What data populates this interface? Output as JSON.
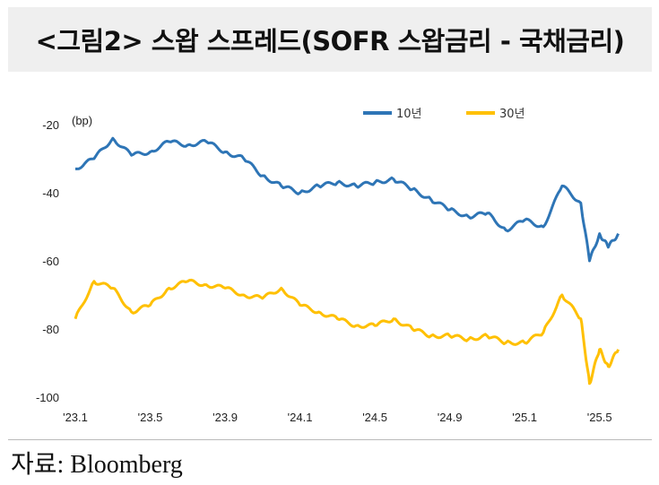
{
  "title": "<그림2> 스왑 스프레드(SOFR 스왑금리 - 국채금리)",
  "source": "자료: Bloomberg",
  "chart_data": {
    "type": "line",
    "unit_label": "(bp)",
    "ylim": [
      -100,
      -20
    ],
    "yticks": [
      -20,
      -40,
      -60,
      -80,
      -100
    ],
    "xticks": [
      "'23.1",
      "'23.5",
      "'23.9",
      "'24.1",
      "'24.5",
      "'24.9",
      "'25.1",
      "'25.5"
    ],
    "x_months": [
      "2023-01",
      "2023-03",
      "2023-05",
      "2023-07",
      "2023-09",
      "2023-11",
      "2024-01",
      "2024-03",
      "2024-05",
      "2024-07",
      "2024-09",
      "2024-11",
      "2025-01",
      "2025-02",
      "2025-03",
      "2025-04",
      "2025-05",
      "2025-06"
    ],
    "grid": false,
    "legend_position": "top",
    "series": [
      {
        "name": "10년",
        "color": "#2E75B6",
        "x": [
          "2023-01",
          "2023-02",
          "2023-03",
          "2023-04",
          "2023-05",
          "2023-06",
          "2023-07",
          "2023-08",
          "2023-09",
          "2023-10",
          "2023-11",
          "2023-12",
          "2024-01",
          "2024-02",
          "2024-03",
          "2024-04",
          "2024-05",
          "2024-06",
          "2024-07",
          "2024-08",
          "2024-09",
          "2024-10",
          "2024-11",
          "2024-12",
          "2025-01",
          "2025-02",
          "2025-03",
          "2025-04",
          "2025-04-15",
          "2025-05",
          "2025-05-15",
          "2025-06"
        ],
        "values": [
          -33,
          -30,
          -24,
          -29,
          -28,
          -25,
          -26,
          -25,
          -28,
          -30,
          -35,
          -38,
          -40,
          -38,
          -37,
          -38,
          -37,
          -36,
          -39,
          -42,
          -45,
          -47,
          -46,
          -51,
          -48,
          -50,
          -38,
          -43,
          -60,
          -52,
          -56,
          -52
        ]
      },
      {
        "name": "30년",
        "color": "#FFC000",
        "x": [
          "2023-01",
          "2023-02",
          "2023-03",
          "2023-04",
          "2023-05",
          "2023-06",
          "2023-07",
          "2023-08",
          "2023-09",
          "2023-10",
          "2023-11",
          "2023-12",
          "2024-01",
          "2024-02",
          "2024-03",
          "2024-04",
          "2024-05",
          "2024-06",
          "2024-07",
          "2024-08",
          "2024-09",
          "2024-10",
          "2024-11",
          "2024-12",
          "2025-01",
          "2025-02",
          "2025-03",
          "2025-04",
          "2025-04-15",
          "2025-05",
          "2025-05-15",
          "2025-06"
        ],
        "values": [
          -77,
          -66,
          -68,
          -75,
          -73,
          -68,
          -66,
          -67,
          -68,
          -70,
          -71,
          -68,
          -73,
          -75,
          -77,
          -79,
          -79,
          -77,
          -80,
          -82,
          -82,
          -83,
          -82,
          -84,
          -84,
          -81,
          -70,
          -77,
          -96,
          -86,
          -91,
          -86
        ]
      }
    ]
  }
}
